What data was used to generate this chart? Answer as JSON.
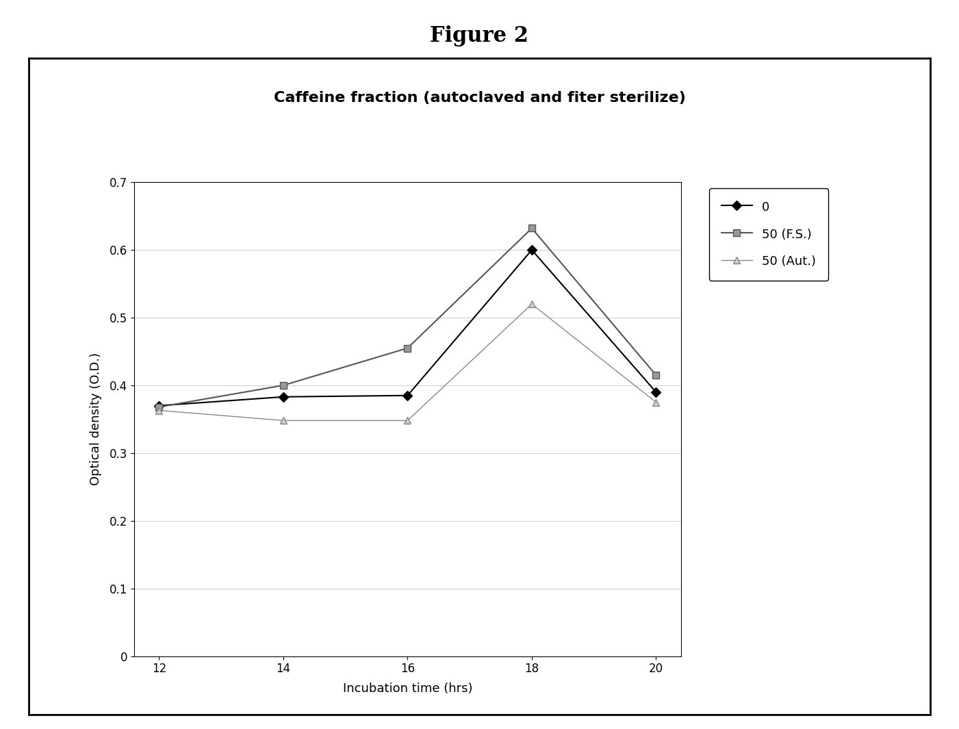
{
  "title_figure": "Figure 2",
  "title_chart": "Caffeine fraction (autoclaved and fiter sterilize)",
  "xlabel": "Incubation time (hrs)",
  "ylabel": "Optical density (O.D.)",
  "x": [
    12,
    14,
    16,
    18,
    20
  ],
  "series": [
    {
      "label": "0",
      "y": [
        0.37,
        0.383,
        0.385,
        0.6,
        0.39
      ],
      "color": "#000000",
      "marker": "D",
      "marker_size": 7,
      "linestyle": "-",
      "linewidth": 1.5,
      "marker_facecolor": "#000000"
    },
    {
      "label": "50 (F.S.)",
      "y": [
        0.368,
        0.4,
        0.455,
        0.632,
        0.415
      ],
      "color": "#555555",
      "marker": "s",
      "marker_size": 7,
      "linestyle": "-",
      "linewidth": 1.5,
      "marker_facecolor": "#999999"
    },
    {
      "label": "50 (Aut.)",
      "y": [
        0.363,
        0.348,
        0.348,
        0.52,
        0.375
      ],
      "color": "#888888",
      "marker": "^",
      "marker_size": 7,
      "linestyle": "-",
      "linewidth": 1.0,
      "marker_facecolor": "#cccccc"
    }
  ],
  "ylim": [
    0,
    0.7
  ],
  "yticks": [
    0,
    0.1,
    0.2,
    0.3,
    0.4,
    0.5,
    0.6,
    0.7
  ],
  "xticks": [
    12,
    14,
    16,
    18,
    20
  ],
  "background_color": "#ffffff",
  "figure_title_fontsize": 22,
  "chart_title_fontsize": 16,
  "axis_label_fontsize": 13,
  "tick_label_fontsize": 12,
  "legend_fontsize": 13
}
